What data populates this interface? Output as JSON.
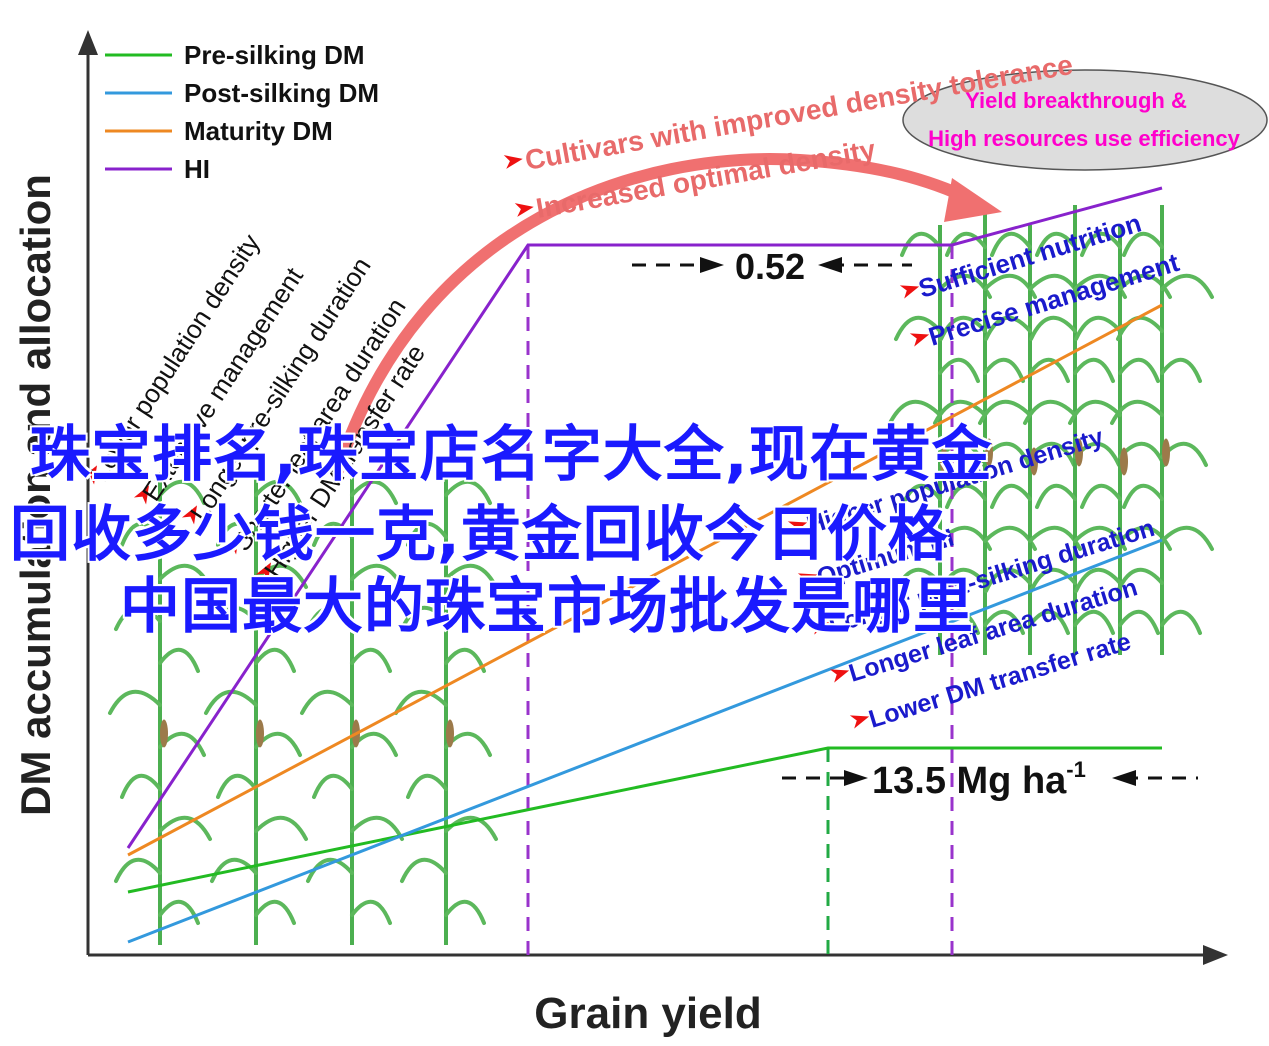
{
  "chart_data": {
    "type": "line",
    "xlabel": "Grain yield",
    "ylabel": "DM accumulation and allocation",
    "legend_position": "top-left",
    "legend": [
      {
        "label": "Pre-silking DM",
        "color": "#22bb22"
      },
      {
        "label": "Post-silking DM",
        "color": "#3399dd"
      },
      {
        "label": "Maturity DM",
        "color": "#ee8822"
      },
      {
        "label": "HI",
        "color": "#8822cc"
      }
    ],
    "left_annotations": [
      "Lower population density",
      "Extensive management",
      "Longer pre-silking duration",
      "Shorter leaf area duration",
      "Higher DM transfer rate"
    ],
    "right_upper_annotations": [
      "Sufficient nutrition",
      "Precise management"
    ],
    "right_lower_annotations": [
      "Higher population density",
      "Optimum HI",
      "Longer post-silking duration",
      "Longer leaf area duration",
      "Lower DM transfer rate"
    ],
    "arrow_annotations": [
      "Cultivars with improved density tolerance",
      "Increased optimal density"
    ],
    "ellipse_text": [
      "Yield breakthrough &",
      "High resources use efficiency"
    ],
    "hi_plateau_label": "0.52",
    "yield_label_main": "13.5 Mg ha",
    "yield_label_sup": "-1",
    "colors": {
      "accent_red": "#e86a6a",
      "label_blue": "#1a1acc",
      "ellipse_text": "#ff00cc",
      "axis": "#333333"
    }
  },
  "overlay": {
    "line1": "珠宝排名,珠宝店名字大全,现在黄金",
    "line2": "回收多少钱一克,黄金回收今日价格",
    "line3": "中国最大的珠宝市场批发是哪里"
  }
}
